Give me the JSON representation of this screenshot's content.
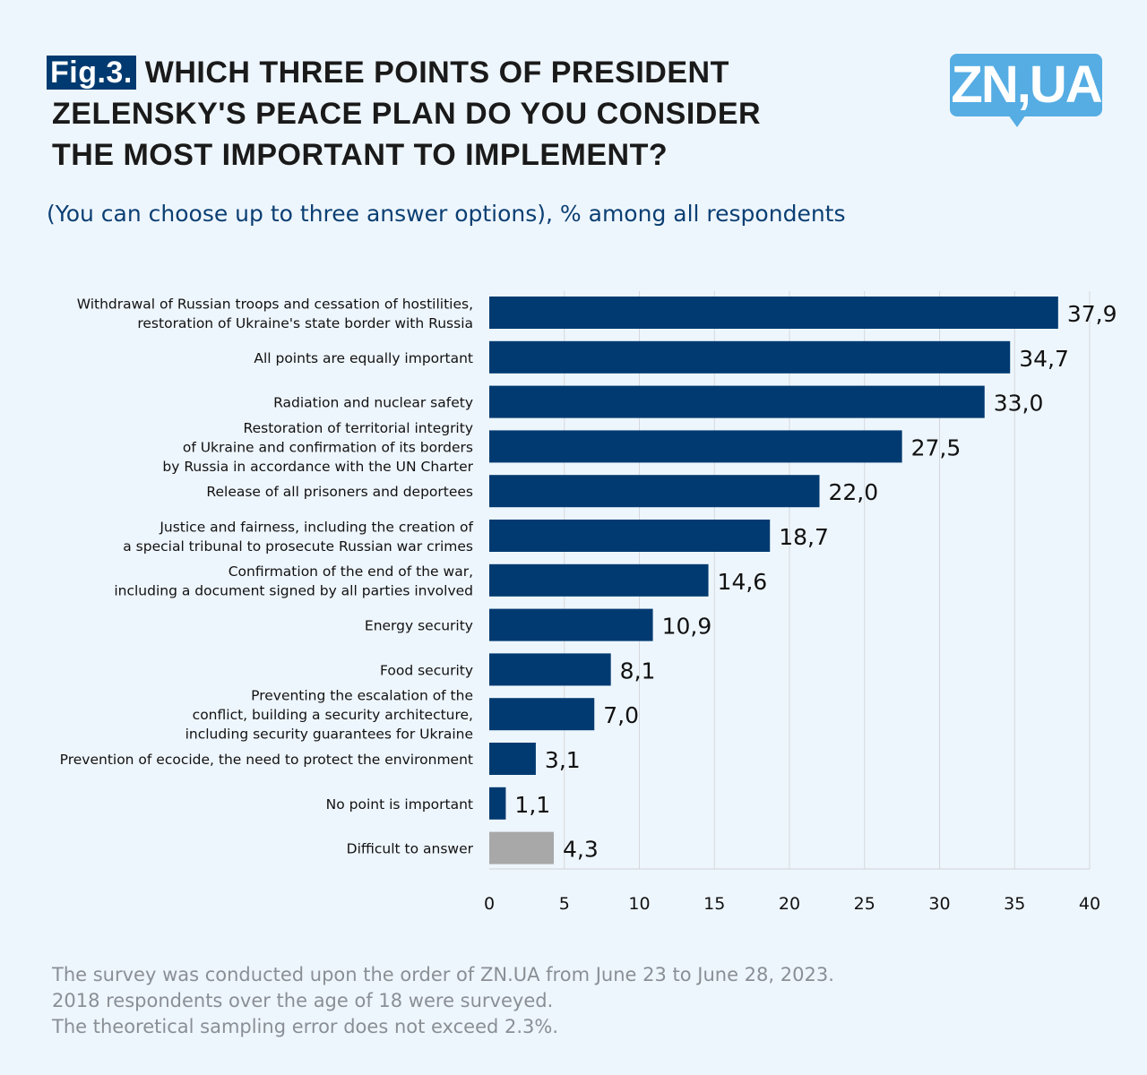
{
  "header": {
    "fig_label": "Fig.3.",
    "title_lines": [
      "WHICH THREE POINTS OF PRESIDENT",
      "ZELENSKY'S PEACE PLAN DO YOU CONSIDER",
      "THE MOST IMPORTANT TO IMPLEMENT?"
    ],
    "subtitle": "(You can choose up to three answer options), % among all respondents",
    "logo": "ZN,UA"
  },
  "chart_data": {
    "type": "bar",
    "orientation": "horizontal",
    "title": "WHICH THREE POINTS OF PRESIDENT ZELENSKY'S PEACE PLAN DO YOU CONSIDER THE MOST IMPORTANT TO IMPLEMENT?",
    "xlabel": "",
    "ylabel": "",
    "xlim": [
      0,
      40
    ],
    "xticks": [
      "0",
      "5",
      "10",
      "15",
      "20",
      "25",
      "30",
      "35",
      "40"
    ],
    "grid": true,
    "categories": [
      [
        "Withdrawal of Russian troops and cessation of hostilities,",
        "restoration of Ukraine's state border with Russia"
      ],
      [
        "All points are equally important"
      ],
      [
        "Radiation and nuclear safety"
      ],
      [
        "Restoration of territorial integrity",
        "of Ukraine and confirmation of its borders",
        "by Russia in accordance with the UN Charter"
      ],
      [
        "Release of all prisoners and deportees"
      ],
      [
        "Justice and fairness, including the creation of",
        "a special tribunal to prosecute Russian war crimes"
      ],
      [
        "Confirmation of the end of the war,",
        "including a document signed by all parties involved"
      ],
      [
        "Energy security"
      ],
      [
        "Food security"
      ],
      [
        "Preventing the escalation of the",
        "conflict, building a security architecture,",
        "including security guarantees for Ukraine"
      ],
      [
        "Prevention of ecocide, the need to protect the environment"
      ],
      [
        "No point is important"
      ],
      [
        "Difficult to answer"
      ]
    ],
    "values": [
      37.9,
      34.7,
      33.0,
      27.5,
      22.0,
      18.7,
      14.6,
      10.9,
      8.1,
      7.0,
      3.1,
      1.1,
      4.3
    ],
    "value_labels": [
      "37,9",
      "34,7",
      "33,0",
      "27,5",
      "22,0",
      "18,7",
      "14,6",
      "10,9",
      "8,1",
      "7,0",
      "3,1",
      "1,1",
      "4,3"
    ],
    "colors": [
      "#003a70",
      "#003a70",
      "#003a70",
      "#003a70",
      "#003a70",
      "#003a70",
      "#003a70",
      "#003a70",
      "#003a70",
      "#003a70",
      "#003a70",
      "#003a70",
      "#a8a8a8"
    ]
  },
  "footer": {
    "lines": [
      "The survey was conducted upon the order of ZN.UA from June 23 to June 28, 2023.",
      "2018 respondents over the age of 18 were surveyed.",
      "The theoretical sampling error does not exceed 2.3%."
    ]
  }
}
